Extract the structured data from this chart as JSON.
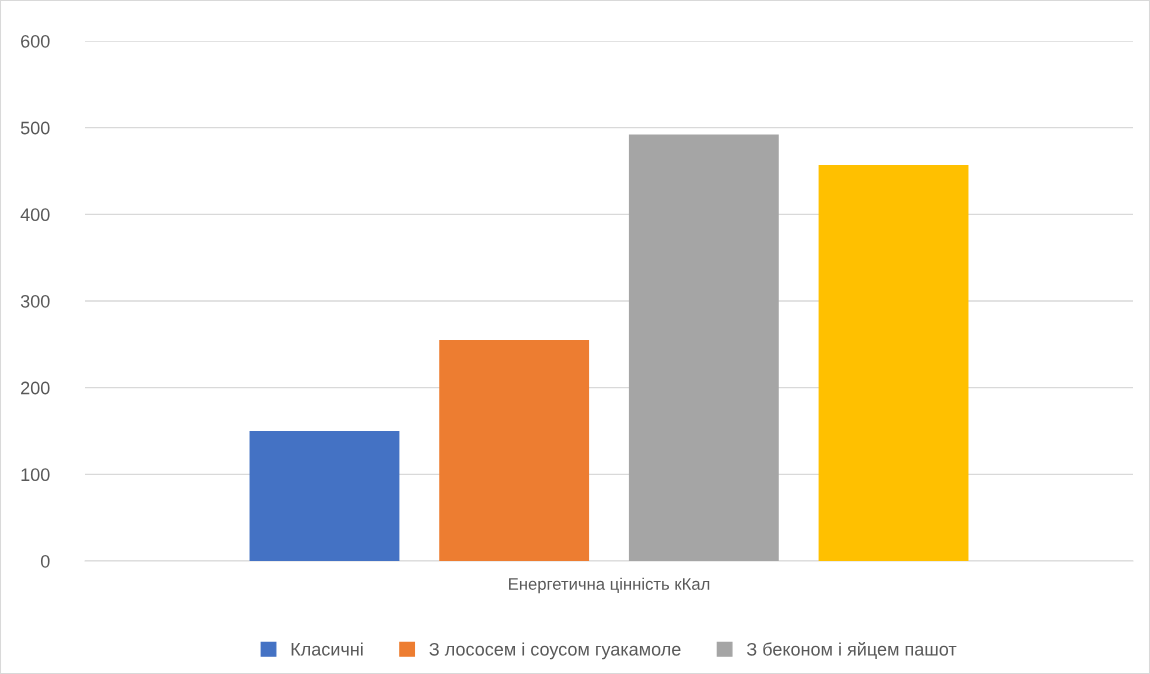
{
  "chart_data": {
    "type": "bar",
    "categories": [
      "Енергетична цінність кКал"
    ],
    "series": [
      {
        "name": "Класичні",
        "color": "#4472c4",
        "values": [
          150
        ]
      },
      {
        "name": "З лососем і соусом гуакамоле",
        "color": "#ed7d31",
        "values": [
          255
        ]
      },
      {
        "name": "З беконом і яйцем пашот",
        "color": "#a5a5a5",
        "values": [
          492
        ]
      },
      {
        "color": "#ffc000",
        "values": [
          457
        ]
      }
    ],
    "ylim": [
      0,
      600
    ],
    "yticks": [
      0,
      100,
      200,
      300,
      400,
      500,
      600
    ],
    "grid": "y",
    "legend": "bottom"
  }
}
